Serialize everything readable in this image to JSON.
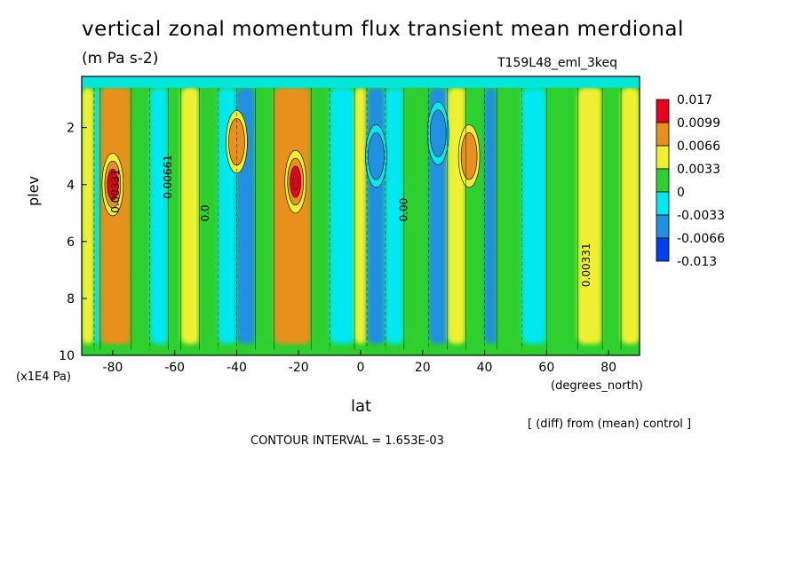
{
  "title": "vertical zonal momentum flux transient mean merdional",
  "units": "(m Pa s-2)",
  "run_id": "T159L48_eml_3keq",
  "y_axis_label": "plev",
  "y_axis_note": "(x1E4 Pa)",
  "x_axis_label": "lat",
  "x_axis_note": "(degrees_north)",
  "diff_note": "[ (diff) from (mean) control ]",
  "contour_interval_text": "CONTOUR INTERVAL = 1.653E-03",
  "chart_data": {
    "type": "heatmap",
    "x": {
      "label": "lat",
      "range": [
        -90,
        90
      ],
      "ticks": [
        -80,
        -60,
        -40,
        -20,
        0,
        20,
        40,
        60,
        80
      ]
    },
    "y": {
      "label": "plev",
      "range": [
        0.2,
        10
      ],
      "inverted": true,
      "ticks": [
        2,
        4,
        6,
        8,
        10
      ]
    },
    "legend": {
      "placement": "right",
      "labels": [
        "0.017",
        "0.0099",
        "0.0066",
        "0.0033",
        "0",
        "-0.0033",
        "-0.0066",
        "-0.013"
      ],
      "colors": [
        "#e8001c",
        "#e8901c",
        "#f0f030",
        "#2ed02e",
        "#00e8f0",
        "#2090e0",
        "#0040f0"
      ]
    },
    "contour_labels": [
      "0.00331",
      "0.00661",
      "0.0",
      "0.00",
      "0.00331"
    ],
    "bands": [
      {
        "lat": [
          -90,
          -86
        ],
        "value": 0.005
      },
      {
        "lat": [
          -86,
          -84
        ],
        "value": -0.002
      },
      {
        "lat": [
          -84,
          -74
        ],
        "value": 0.007
      },
      {
        "lat": [
          -74,
          -68
        ],
        "value": 0.001
      },
      {
        "lat": [
          -68,
          -62
        ],
        "value": -0.003
      },
      {
        "lat": [
          -62,
          -58
        ],
        "value": 0.001
      },
      {
        "lat": [
          -58,
          -52
        ],
        "value": 0.004
      },
      {
        "lat": [
          -52,
          -46
        ],
        "value": 0.001
      },
      {
        "lat": [
          -46,
          -40
        ],
        "value": -0.003
      },
      {
        "lat": [
          -40,
          -34
        ],
        "value": -0.004
      },
      {
        "lat": [
          -34,
          -28
        ],
        "value": 0.001
      },
      {
        "lat": [
          -28,
          -16
        ],
        "value": 0.009
      },
      {
        "lat": [
          -16,
          -10
        ],
        "value": 0.001
      },
      {
        "lat": [
          -10,
          -2
        ],
        "value": -0.003
      },
      {
        "lat": [
          -2,
          2
        ],
        "value": 0.004
      },
      {
        "lat": [
          2,
          8
        ],
        "value": -0.005
      },
      {
        "lat": [
          8,
          14
        ],
        "value": -0.002
      },
      {
        "lat": [
          14,
          22
        ],
        "value": 0.002
      },
      {
        "lat": [
          22,
          28
        ],
        "value": -0.005
      },
      {
        "lat": [
          28,
          34
        ],
        "value": 0.005
      },
      {
        "lat": [
          34,
          40
        ],
        "value": 0.002
      },
      {
        "lat": [
          40,
          44
        ],
        "value": -0.005
      },
      {
        "lat": [
          44,
          52
        ],
        "value": 0.001
      },
      {
        "lat": [
          52,
          60
        ],
        "value": -0.002
      },
      {
        "lat": [
          60,
          70
        ],
        "value": 0.001
      },
      {
        "lat": [
          70,
          78
        ],
        "value": 0.005
      },
      {
        "lat": [
          78,
          84
        ],
        "value": 0.001
      },
      {
        "lat": [
          84,
          90
        ],
        "value": 0.005
      }
    ],
    "hotspots": [
      {
        "lat": -21,
        "plev": 3.9,
        "value": 0.017
      },
      {
        "lat": -80,
        "plev": 4.0,
        "value": 0.009
      },
      {
        "lat": 35,
        "plev": 3.0,
        "value": 0.008
      },
      {
        "lat": -40,
        "plev": 2.5,
        "value": 0.008
      },
      {
        "lat": 25,
        "plev": 2.2,
        "value": -0.009
      },
      {
        "lat": 5,
        "plev": 3.0,
        "value": -0.007
      }
    ]
  }
}
